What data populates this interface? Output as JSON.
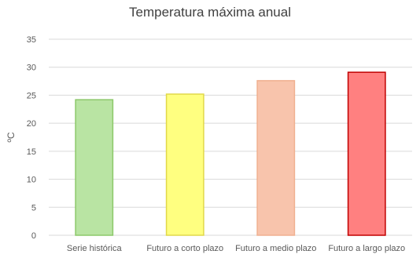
{
  "chart_data": {
    "type": "bar",
    "title": "Temperatura máxima anual",
    "xlabel": "",
    "ylabel": "ºC",
    "categories": [
      "Serie histórica",
      "Futuro a corto plazo",
      "Futuro a medio plazo",
      "Futuro a largo plazo"
    ],
    "values": [
      24.2,
      25.2,
      27.6,
      29.1
    ],
    "ylim": [
      0,
      35
    ],
    "yticks": [
      0,
      5,
      10,
      15,
      20,
      25,
      30,
      35
    ],
    "grid": true,
    "legend": "none",
    "colors": {
      "fills": [
        "#b9e4a3",
        "#ffff80",
        "#f8c4ac",
        "#ff8080"
      ],
      "strokes": [
        "#8cc86a",
        "#e0d84a",
        "#f0b090",
        "#c00000"
      ],
      "grid": "#d9d9d9",
      "text": "#595959"
    }
  }
}
